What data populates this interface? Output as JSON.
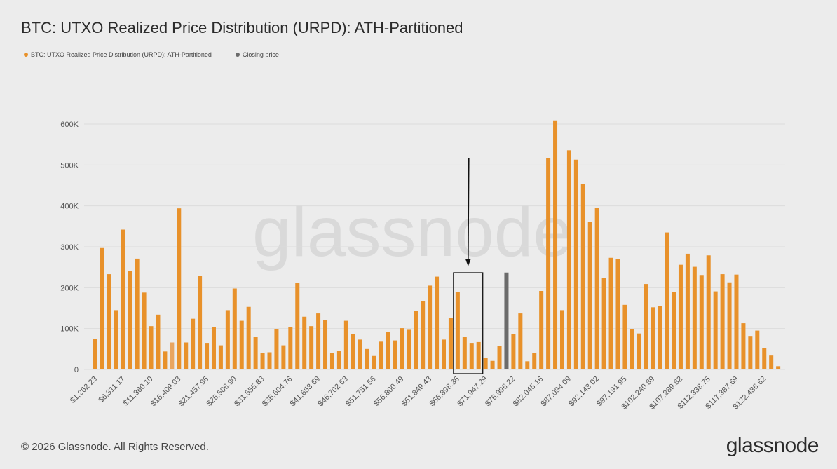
{
  "title": "BTC: UTXO Realized Price Distribution (URPD): ATH-Partitioned",
  "legend": [
    {
      "label": "BTC: UTXO Realized Price Distribution (URPD): ATH-Partitioned",
      "color": "#e8912a"
    },
    {
      "label": "Closing price",
      "color": "#6b6b6b"
    }
  ],
  "footer": "© 2026 Glassnode. All Rights Reserved.",
  "logo": "glassnode",
  "watermark": "glassnode",
  "chart_data": {
    "type": "bar",
    "title": "BTC: UTXO Realized Price Distribution (URPD): ATH-Partitioned",
    "xlabel": "",
    "ylabel": "",
    "ylim": [
      0,
      600000
    ],
    "yticks": [
      0,
      100000,
      200000,
      300000,
      400000,
      500000,
      600000
    ],
    "ytick_labels": [
      "0",
      "100K",
      "200K",
      "300K",
      "400K",
      "500K",
      "600K"
    ],
    "bin_width": 1262.23,
    "xtick_every": 4,
    "xtick_labels": [
      "$1,262.23",
      "$6,311.17",
      "$11,360.10",
      "$16,409.03",
      "$21,457.96",
      "$26,506.90",
      "$31,555.83",
      "$36,604.76",
      "$41,653.69",
      "$46,702.63",
      "$51,751.56",
      "$56,800.49",
      "$61,849.43",
      "$66,898.36",
      "$71,947.29",
      "$76,996.22",
      "$82,045.16",
      "$87,094.09",
      "$92,143.02",
      "$97,191.95",
      "$102,240.89",
      "$107,289.82",
      "$112,338.75",
      "$117,387.69",
      "$122,436.62"
    ],
    "values": [
      75000,
      297000,
      233000,
      145000,
      342000,
      241000,
      271000,
      188000,
      106000,
      134000,
      44000,
      66000,
      394000,
      66000,
      124000,
      228000,
      65000,
      103000,
      59000,
      145000,
      198000,
      119000,
      153000,
      79000,
      40000,
      42000,
      98000,
      59000,
      103000,
      211000,
      129000,
      106000,
      137000,
      121000,
      41000,
      46000,
      119000,
      87000,
      73000,
      50000,
      33000,
      68000,
      92000,
      71000,
      101000,
      97000,
      144000,
      168000,
      205000,
      227000,
      73000,
      126000,
      189000,
      79000,
      65000,
      67000,
      28000,
      21000,
      58000,
      237000,
      86000,
      137000,
      20000,
      41000,
      192000,
      517000,
      609000,
      145000,
      536000,
      513000,
      454000,
      360000,
      396000,
      223000,
      273000,
      270000,
      158000,
      99000,
      88000,
      209000,
      152000,
      155000,
      335000,
      190000,
      256000,
      283000,
      251000,
      231000,
      279000,
      191000,
      233000,
      213000,
      232000,
      113000,
      82000,
      95000,
      52000,
      34000,
      8000
    ],
    "closing_price_index": 59,
    "highlight_light_index": 11,
    "annotations": [
      {
        "type": "arrow",
        "pointing": "down",
        "target_bar_indices": [
          52,
          55
        ]
      },
      {
        "type": "box",
        "bar_indices": [
          52,
          55
        ]
      }
    ],
    "grid": true,
    "legend_position": "top-left"
  }
}
